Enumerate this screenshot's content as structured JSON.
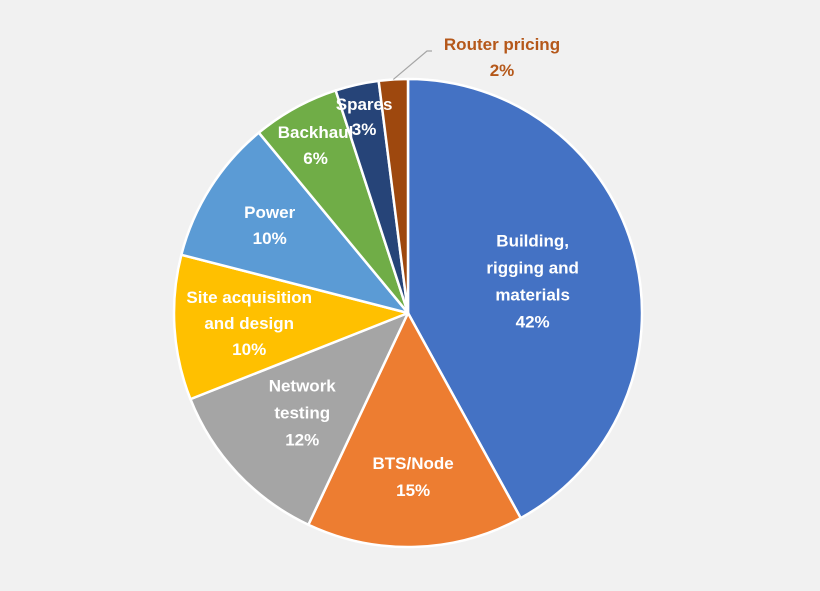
{
  "chart_data": {
    "type": "pie",
    "title": "",
    "slices": [
      {
        "label": "Building, rigging and materials",
        "value": 42,
        "display": "42%",
        "color": "#4472c4"
      },
      {
        "label": "BTS/Node",
        "value": 15,
        "display": "15%",
        "color": "#ed7d31"
      },
      {
        "label": "Network testing",
        "value": 12,
        "display": "12%",
        "color": "#a5a5a5"
      },
      {
        "label": "Site acquisition and design",
        "value": 10,
        "display": "10%",
        "color": "#ffc000"
      },
      {
        "label": "Power",
        "value": 10,
        "display": "10%",
        "color": "#5b9bd5"
      },
      {
        "label": "Backhaul",
        "value": 6,
        "display": "6%",
        "color": "#70ad47"
      },
      {
        "label": "Spares",
        "value": 3,
        "display": "3%",
        "color": "#264478"
      },
      {
        "label": "Router pricing",
        "value": 2,
        "display": "2%",
        "color": "#9e480e"
      }
    ],
    "start": "12 o'clock",
    "direction": "clockwise",
    "legend": "none"
  }
}
